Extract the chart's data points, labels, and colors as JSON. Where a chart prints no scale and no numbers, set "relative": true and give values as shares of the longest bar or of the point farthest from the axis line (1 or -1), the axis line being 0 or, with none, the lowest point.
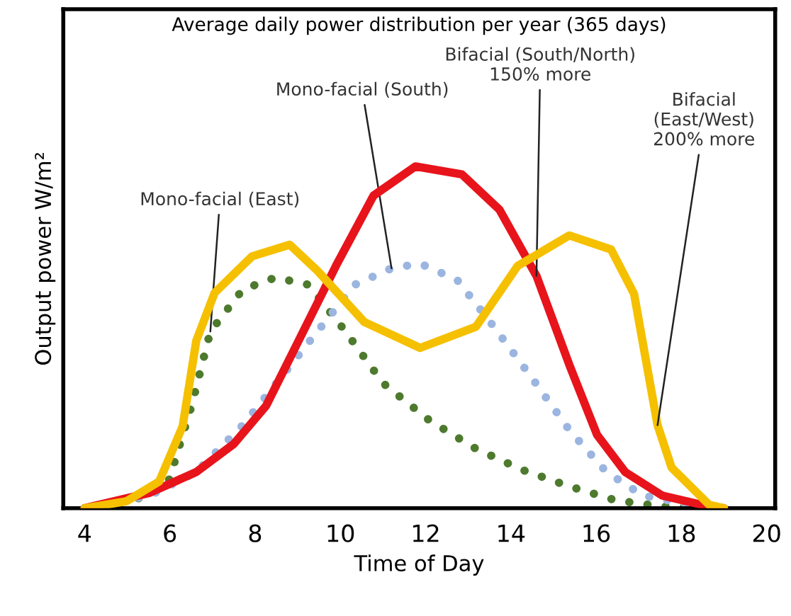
{
  "chart_data": {
    "type": "line",
    "title": "Average daily power distribution per year (365 days)",
    "xlabel": "Time of Day",
    "ylabel": "Output power W/m²",
    "relative": true,
    "xlim": [
      3.5,
      20.2
    ],
    "xticks": [
      4,
      6,
      8,
      10,
      12,
      14,
      16,
      18,
      20
    ],
    "grid": false,
    "series": [
      {
        "name": "Mono-facial (East)",
        "color": "#4e7a2e",
        "line_style": "dotted",
        "x": [
          4,
          5.31,
          5.97,
          6.51,
          6.95,
          7.71,
          8.48,
          9.25,
          10.12,
          11,
          12.09,
          13.18,
          14.27,
          15.37,
          16.46,
          17.55,
          19
        ],
        "values": [
          0,
          0.03,
          0.078,
          0.3,
          0.517,
          0.64,
          0.675,
          0.654,
          0.517,
          0.366,
          0.257,
          0.174,
          0.112,
          0.064,
          0.023,
          0.005,
          0
        ]
      },
      {
        "name": "Mono-facial (South)",
        "color": "#9bb5e0",
        "line_style": "dotted",
        "x": [
          4,
          5.53,
          6.62,
          7.71,
          8.59,
          9.46,
          10.34,
          11.2,
          11.87,
          12.74,
          13.6,
          14.5,
          15.37,
          16.24,
          17.1,
          18.43,
          19
        ],
        "values": [
          0,
          0.037,
          0.106,
          0.243,
          0.38,
          0.517,
          0.654,
          0.702,
          0.716,
          0.668,
          0.531,
          0.38,
          0.229,
          0.106,
          0.037,
          0.005,
          0
        ]
      },
      {
        "name": "Bifacial (South/North)\n150% more",
        "color": "#e8141b",
        "line_style": "solid",
        "x": [
          4,
          5.53,
          6.62,
          7.5,
          8.26,
          9.02,
          9.9,
          10.78,
          11.76,
          12.85,
          13.73,
          14.6,
          15.37,
          16.02,
          16.68,
          17.55,
          18.65,
          19
        ],
        "values": [
          0,
          0.045,
          0.106,
          0.188,
          0.3,
          0.49,
          0.71,
          0.915,
          1,
          0.977,
          0.874,
          0.68,
          0.42,
          0.215,
          0.106,
          0.037,
          0.005,
          0
        ]
      },
      {
        "name": "Bifacial\n(East/West)\n200% more",
        "color": "#f5c000",
        "line_style": "solid",
        "x": [
          4,
          4.98,
          5.75,
          6.3,
          6.62,
          7.05,
          7.93,
          8.81,
          9.46,
          10.56,
          11.87,
          13.18,
          14.16,
          15.37,
          16.35,
          16.89,
          17.44,
          17.77,
          18.65,
          19
        ],
        "values": [
          0,
          0.02,
          0.078,
          0.24,
          0.49,
          0.63,
          0.737,
          0.771,
          0.695,
          0.545,
          0.469,
          0.531,
          0.709,
          0.798,
          0.757,
          0.627,
          0.243,
          0.119,
          0.01,
          0
        ]
      }
    ]
  }
}
